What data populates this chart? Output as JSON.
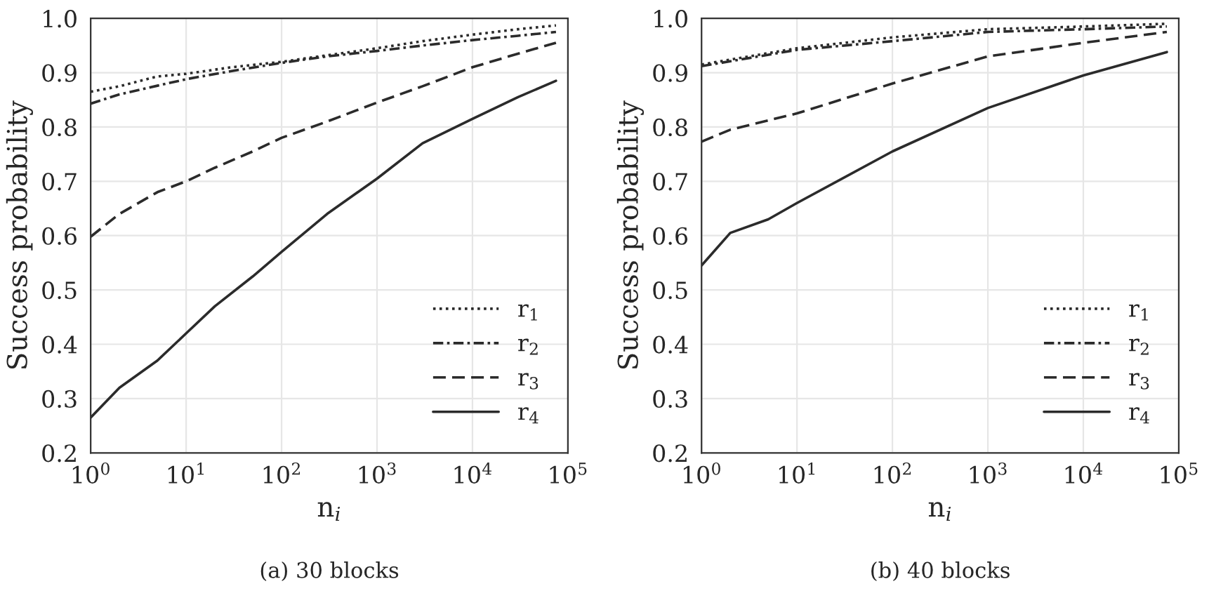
{
  "chart_data": [
    {
      "type": "line",
      "xlabel": "n$_{i}$",
      "ylabel": "Success probability",
      "annotations": [
        "(a) 30 blocks"
      ],
      "log": "x",
      "grid": true,
      "legend": "bottom right",
      "xlim": [
        1,
        100000
      ],
      "ylim": [
        0.2,
        1.0
      ],
      "xticks": [
        {
          "value": 1,
          "label": "10$^{0}$"
        },
        {
          "value": 10,
          "label": "10$^{1}$"
        },
        {
          "value": 100,
          "label": "10$^{2}$"
        },
        {
          "value": 1000,
          "label": "10$^{3}$"
        },
        {
          "value": 10000,
          "label": "10$^{4}$"
        },
        {
          "value": 100000,
          "label": "10$^{5}$"
        }
      ],
      "yticks": [
        0.2,
        0.3,
        0.4,
        0.5,
        0.6,
        0.7,
        0.8,
        0.9,
        {
          "value": 1,
          "label": "1.0"
        }
      ],
      "series": [
        {
          "name": "r$_{1}$",
          "color": "#2b2b2b",
          "line_style": "dotted",
          "x": [
            1,
            2,
            5,
            10,
            30,
            100,
            300,
            1000,
            3000,
            10000,
            30000,
            75000
          ],
          "values": [
            0.865,
            0.875,
            0.893,
            0.898,
            0.91,
            0.92,
            0.932,
            0.945,
            0.958,
            0.97,
            0.98,
            0.987
          ]
        },
        {
          "name": "r$_{2}$",
          "color": "#2b2b2b",
          "line_style": "dashdot",
          "x": [
            1,
            2,
            5,
            10,
            30,
            100,
            300,
            1000,
            3000,
            10000,
            30000,
            75000
          ],
          "values": [
            0.843,
            0.86,
            0.876,
            0.888,
            0.903,
            0.918,
            0.93,
            0.94,
            0.95,
            0.96,
            0.968,
            0.975
          ]
        },
        {
          "name": "r$_{3}$",
          "color": "#2b2b2b",
          "line_style": "dashed",
          "x": [
            1,
            2,
            5,
            10,
            20,
            50,
            100,
            300,
            1000,
            3000,
            10000,
            30000,
            75000
          ],
          "values": [
            0.598,
            0.64,
            0.68,
            0.7,
            0.725,
            0.755,
            0.78,
            0.81,
            0.845,
            0.875,
            0.91,
            0.935,
            0.955
          ]
        },
        {
          "name": "r$_{4}$",
          "color": "#2b2b2b",
          "line_style": "solid",
          "x": [
            1,
            2,
            5,
            10,
            20,
            50,
            100,
            300,
            1000,
            3000,
            10000,
            30000,
            75000
          ],
          "values": [
            0.265,
            0.32,
            0.37,
            0.42,
            0.47,
            0.525,
            0.57,
            0.64,
            0.705,
            0.77,
            0.815,
            0.855,
            0.885
          ]
        }
      ]
    },
    {
      "type": "line",
      "xlabel": "n$_{i}$",
      "ylabel": "Success probability",
      "annotations": [
        "(b) 40 blocks"
      ],
      "log": "x",
      "grid": true,
      "legend": "bottom right",
      "xlim": [
        1,
        100000
      ],
      "ylim": [
        0.2,
        1.0
      ],
      "xticks": [
        {
          "value": 1,
          "label": "10$^{0}$"
        },
        {
          "value": 10,
          "label": "10$^{1}$"
        },
        {
          "value": 100,
          "label": "10$^{2}$"
        },
        {
          "value": 1000,
          "label": "10$^{3}$"
        },
        {
          "value": 10000,
          "label": "10$^{4}$"
        },
        {
          "value": 100000,
          "label": "10$^{5}$"
        }
      ],
      "yticks": [
        0.2,
        0.3,
        0.4,
        0.5,
        0.6,
        0.7,
        0.8,
        0.9,
        {
          "value": 1,
          "label": "1.0"
        }
      ],
      "series": [
        {
          "name": "r$_{1}$",
          "color": "#2b2b2b",
          "line_style": "dotted",
          "x": [
            1,
            10,
            100,
            1000,
            10000,
            75000
          ],
          "values": [
            0.915,
            0.945,
            0.965,
            0.98,
            0.985,
            0.99
          ]
        },
        {
          "name": "r$_{2}$",
          "color": "#2b2b2b",
          "line_style": "dashdot",
          "x": [
            1,
            10,
            100,
            1000,
            10000,
            75000
          ],
          "values": [
            0.912,
            0.942,
            0.958,
            0.975,
            0.98,
            0.985
          ]
        },
        {
          "name": "r$_{3}$",
          "color": "#2b2b2b",
          "line_style": "dashed",
          "x": [
            1,
            2,
            10,
            100,
            1000,
            10000,
            75000
          ],
          "values": [
            0.773,
            0.795,
            0.825,
            0.88,
            0.93,
            0.955,
            0.975
          ]
        },
        {
          "name": "r$_{4}$",
          "color": "#2b2b2b",
          "line_style": "solid",
          "x": [
            1,
            2,
            5,
            10,
            100,
            1000,
            10000,
            75000
          ],
          "values": [
            0.545,
            0.605,
            0.63,
            0.66,
            0.755,
            0.835,
            0.895,
            0.938
          ]
        }
      ]
    }
  ]
}
